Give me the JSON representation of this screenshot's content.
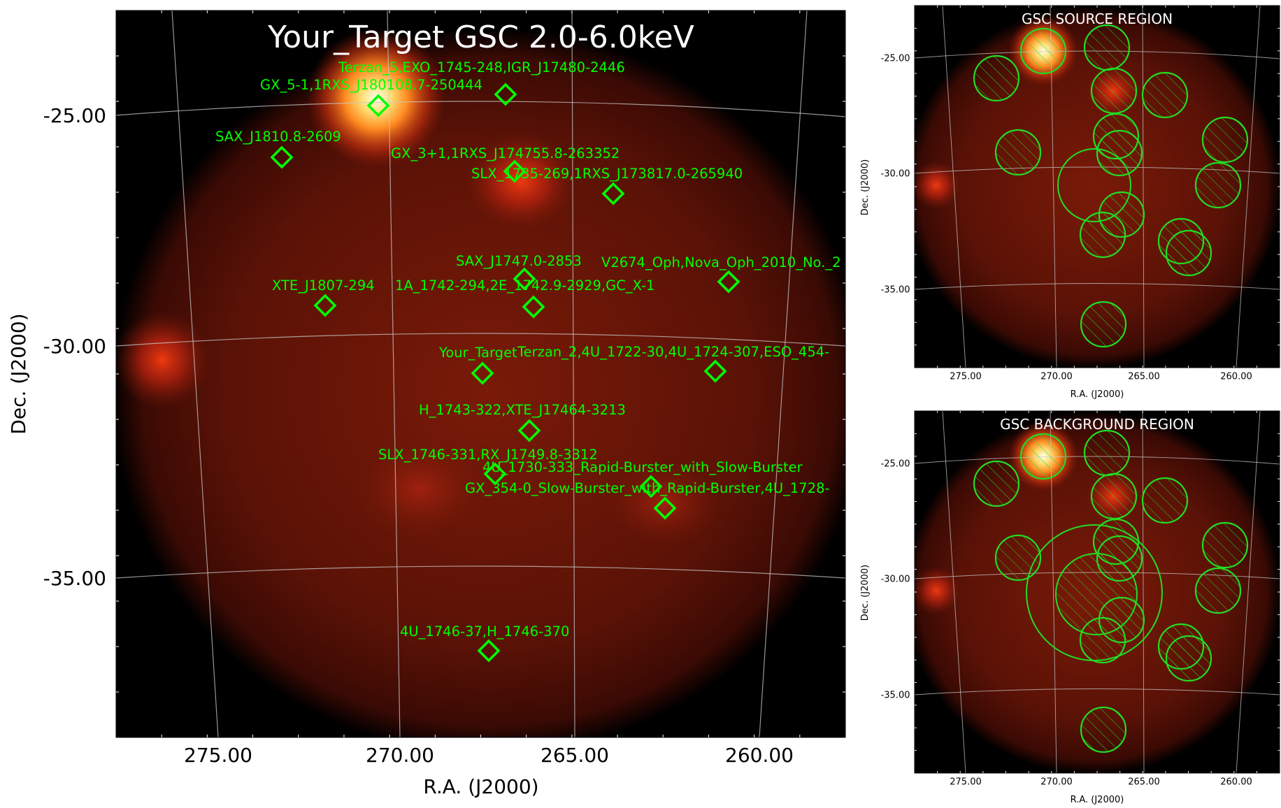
{
  "chart_data": [
    {
      "type": "scatter",
      "title": "Your_Target GSC 2.0-6.0keV",
      "xlabel": "R.A. (J2000)",
      "ylabel": "Dec. (J2000)",
      "xlim": [
        278,
        257.8
      ],
      "ylim": [
        -38.5,
        -22.8
      ],
      "grid": true,
      "x_ticks": [
        "275.00",
        "270.00",
        "265.00",
        "260.00"
      ],
      "y_ticks": [
        "-25.00",
        "-30.00",
        "-35.00"
      ],
      "x_tick_values": [
        275,
        270,
        265,
        260
      ],
      "y_tick_values": [
        -25,
        -30,
        -35
      ],
      "colormap": "black-red-yellow-white",
      "marker_color": "#00ff00",
      "sources": [
        {
          "name": "Terzan_5,EXO_1745-248,IGR_J17480-2446",
          "ra": 267.2,
          "dec": -24.8
        },
        {
          "name": "GX_5-1,1RXS_J180108.7-250444",
          "ra": 270.7,
          "dec": -25.0
        },
        {
          "name": "SAX_J1810.8-2609",
          "ra": 273.3,
          "dec": -26.0
        },
        {
          "name": "GX_3+1,1RXS_J174755.8-263352",
          "ra": 267.0,
          "dec": -26.5
        },
        {
          "name": "SLX_1735-269,1RXS_J173817.0-265940",
          "ra": 264.3,
          "dec": -27.0
        },
        {
          "name": "SAX_J1747.0-2853",
          "ra": 266.8,
          "dec": -28.9
        },
        {
          "name": "V2674_Oph,Nova_Oph_2010_No._2",
          "ra": 260.8,
          "dec": -29.0
        },
        {
          "name": "XTE_J1807-294",
          "ra": 272.1,
          "dec": -29.5
        },
        {
          "name": "1A_1742-294,2E_1742.9-2929,GC_X-1",
          "ra": 266.5,
          "dec": -29.5
        },
        {
          "name": "Your_Target",
          "ra": 267.8,
          "dec": -30.6
        },
        {
          "name": "Terzan_2,4U_1722-30,4U_1724-307,ESO_454-",
          "ra": 261.2,
          "dec": -30.5
        },
        {
          "name": "H_1743-322,XTE_J17464-3213",
          "ra": 266.6,
          "dec": -31.8
        },
        {
          "name": "SLX_1746-331,RX_J1749.8-3312",
          "ra": 267.5,
          "dec": -33.0
        },
        {
          "name": "4U_1730-333_Rapid-Burster_with_Slow-Burster",
          "ra": 263.1,
          "dec": -33.0
        },
        {
          "name": "GX_354-0_Slow-Burster_with_Rapid-Burster,4U_1728-",
          "ra": 262.7,
          "dec": -33.5
        },
        {
          "name": "4U_1746-37,H_1746-370",
          "ra": 267.5,
          "dec": -37.0
        }
      ]
    },
    {
      "type": "scatter",
      "title": "GSC SOURCE REGION",
      "xlabel": "R.A. (J2000)",
      "ylabel": "Dec. (J2000)",
      "x_ticks": [
        "275.00",
        "270.00",
        "265.00",
        "260.00"
      ],
      "y_ticks": [
        "-25.00",
        "-30.00",
        "-35.00"
      ],
      "region_color": "#22dd22"
    },
    {
      "type": "scatter",
      "title": "GSC BACKGROUND REGION",
      "xlabel": "R.A. (J2000)",
      "ylabel": "Dec. (J2000)",
      "x_ticks": [
        "275.00",
        "270.00",
        "265.00",
        "260.00"
      ],
      "y_ticks": [
        "-25.00",
        "-30.00",
        "-35.00"
      ],
      "region_color": "#22dd22"
    }
  ]
}
